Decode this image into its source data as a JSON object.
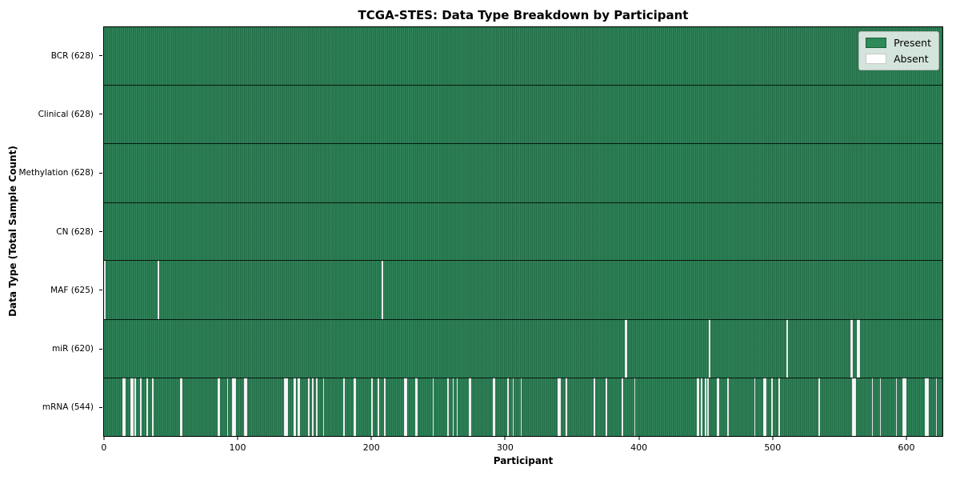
{
  "chart_data": {
    "type": "heatmap",
    "title": "TCGA-STES: Data Type Breakdown by Participant",
    "xlabel": "Participant",
    "ylabel": "Data Type (Total Sample Count)",
    "x_ticks": [
      0,
      100,
      200,
      300,
      400,
      500,
      600
    ],
    "xlim": [
      -0.5,
      627.5
    ],
    "total_participants": 628,
    "grid": false,
    "colors": {
      "present": "#2e8b57",
      "present_stripe_dark": "#1e5f40",
      "present_stripe_light": "#37926a",
      "absent": "#ffffff",
      "row_divider": "#000000",
      "spine": "#000000",
      "legend_background": "#e3e6e3"
    },
    "legend": {
      "position": "upper right",
      "entries": [
        {
          "label": "Present",
          "color": "#2e8b57",
          "border": "#1e5f40"
        },
        {
          "label": "Absent",
          "color": "#ffffff",
          "border": "#c8c8c8"
        }
      ]
    },
    "rows": [
      {
        "label": "BCR (628)",
        "data_type": "BCR",
        "present_count": 628,
        "absent_count": 0,
        "absent_participants": []
      },
      {
        "label": "Clinical (628)",
        "data_type": "Clinical",
        "present_count": 628,
        "absent_count": 0,
        "absent_participants": []
      },
      {
        "label": "Methylation (628)",
        "data_type": "Methylation",
        "present_count": 628,
        "absent_count": 0,
        "absent_participants": []
      },
      {
        "label": "CN (628)",
        "data_type": "CN",
        "present_count": 628,
        "absent_count": 0,
        "absent_participants": []
      },
      {
        "label": "MAF (625)",
        "data_type": "MAF",
        "present_count": 625,
        "absent_count": 3,
        "absent_participants": [
          0,
          40,
          208
        ]
      },
      {
        "label": "miR (620)",
        "data_type": "miR",
        "present_count": 620,
        "absent_count": 8,
        "absent_participants": [
          390,
          391,
          453,
          511,
          559,
          560,
          564,
          565
        ]
      },
      {
        "label": "mRNA (544)",
        "data_type": "mRNA",
        "present_count": 544,
        "absent_count": 84,
        "absent_participants": [
          14,
          15,
          20,
          21,
          23,
          27,
          32,
          36,
          57,
          58,
          85,
          86,
          92,
          96,
          97,
          98,
          105,
          106,
          135,
          136,
          137,
          142,
          143,
          145,
          146,
          153,
          156,
          159,
          164,
          179,
          187,
          188,
          200,
          205,
          210,
          225,
          226,
          233,
          234,
          246,
          257,
          261,
          264,
          273,
          274,
          291,
          292,
          302,
          306,
          312,
          340,
          341,
          346,
          367,
          376,
          388,
          397,
          444,
          445,
          447,
          450,
          452,
          459,
          460,
          467,
          487,
          494,
          495,
          500,
          505,
          535,
          560,
          561,
          562,
          575,
          581,
          593,
          598,
          599,
          600,
          615,
          616,
          617,
          623
        ]
      }
    ]
  }
}
